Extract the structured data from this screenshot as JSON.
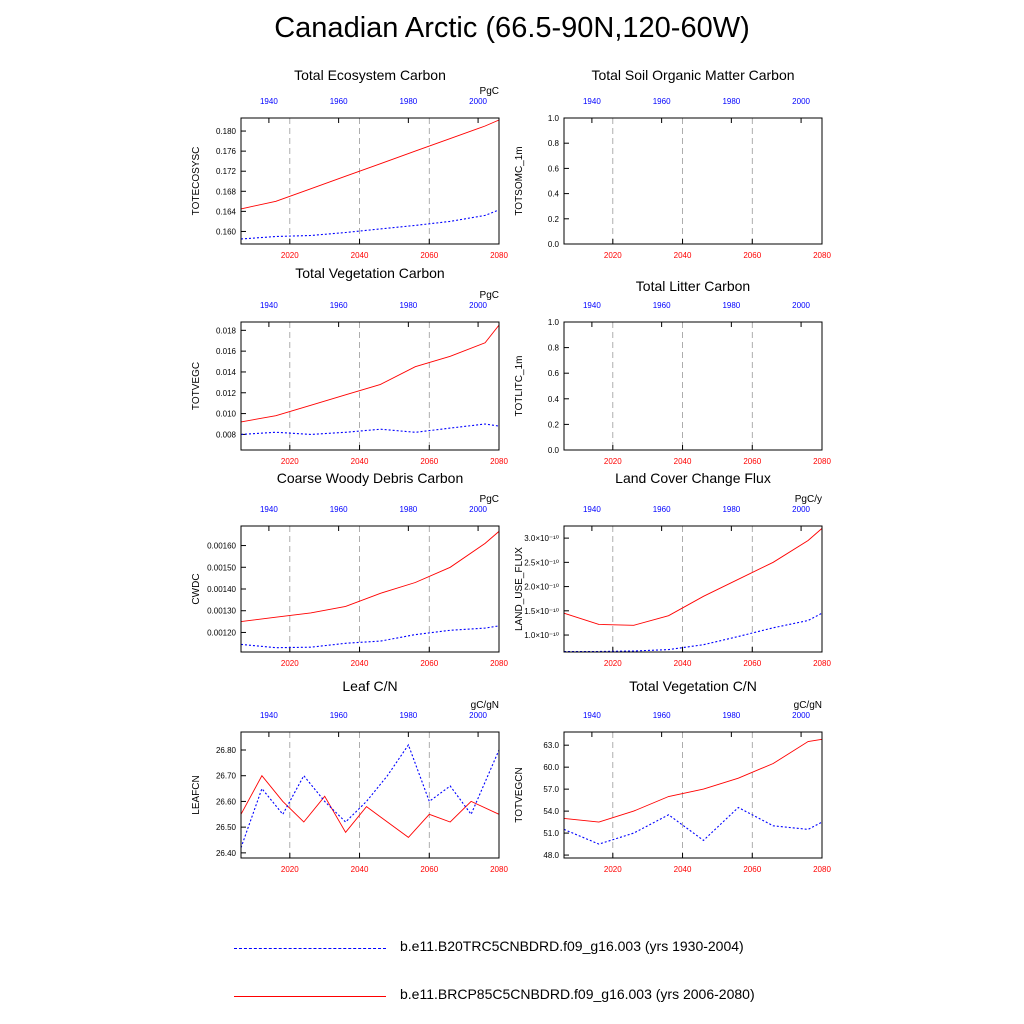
{
  "page_title": "Canadian Arctic (66.5-90N,120-60W)",
  "colors": {
    "historical": "#0000ff",
    "future": "#ff0000",
    "gridline": "#999999"
  },
  "legend": {
    "entries": [
      {
        "label": "b.e11.B20TRC5CNBDRD.f09_g16.003 (yrs 1930-2004)",
        "color": "#0000ff",
        "style": "dashed"
      },
      {
        "label": "b.e11.BRCP85C5CNBDRD.f09_g16.003 (yrs 2006-2080)",
        "color": "#ff0000",
        "style": "solid"
      }
    ]
  },
  "chart_data": [
    {
      "type": "line",
      "title": "Total Ecosystem Carbon",
      "ylabel": "TOTECOSYSC",
      "units": "PgC",
      "x_bottom_ticks": [
        "2020",
        "2040",
        "2060",
        "2080"
      ],
      "x_top_ticks": [
        "1940",
        "1960",
        "1980",
        "2000"
      ],
      "xlim": [
        2006,
        2080
      ],
      "ylim": [
        0.1575,
        0.1826
      ],
      "y_ticks": [
        "0.160",
        "0.164",
        "0.168",
        "0.172",
        "0.176",
        "0.180"
      ],
      "series": [
        {
          "x": [
            2006,
            2016,
            2026,
            2036,
            2046,
            2056,
            2066,
            2076,
            2080
          ],
          "values": [
            0.1645,
            0.166,
            0.1685,
            0.171,
            0.1735,
            0.176,
            0.1785,
            0.181,
            0.1822
          ]
        },
        {
          "x": [
            2006,
            2016,
            2026,
            2036,
            2046,
            2056,
            2066,
            2076,
            2080
          ],
          "values": [
            0.1585,
            0.159,
            0.1592,
            0.1598,
            0.1605,
            0.1612,
            0.162,
            0.1632,
            0.1643
          ]
        }
      ]
    },
    {
      "type": "line",
      "title": "Total Soil Organic Matter Carbon",
      "ylabel": "TOTSOMC_1m",
      "units": "",
      "x_bottom_ticks": [
        "2020",
        "2040",
        "2060",
        "2080"
      ],
      "x_top_ticks": [
        "1940",
        "1960",
        "1980",
        "2000"
      ],
      "xlim": [
        2006,
        2080
      ],
      "ylim": [
        0,
        1
      ],
      "y_ticks": [
        "0.0",
        "0.2",
        "0.4",
        "0.6",
        "0.8",
        "1.0"
      ],
      "series": []
    },
    {
      "type": "line",
      "title": "Total Vegetation Carbon",
      "ylabel": "TOTVEGC",
      "units": "PgC",
      "x_bottom_ticks": [
        "2020",
        "2040",
        "2060",
        "2080"
      ],
      "x_top_ticks": [
        "1940",
        "1960",
        "1980",
        "2000"
      ],
      "xlim": [
        2006,
        2080
      ],
      "ylim": [
        0.0065,
        0.0188
      ],
      "y_ticks": [
        "0.008",
        "0.010",
        "0.012",
        "0.014",
        "0.016",
        "0.018"
      ],
      "series": [
        {
          "x": [
            2006,
            2016,
            2026,
            2036,
            2046,
            2056,
            2066,
            2076,
            2080
          ],
          "values": [
            0.0092,
            0.0098,
            0.0108,
            0.0118,
            0.0128,
            0.0145,
            0.0155,
            0.0168,
            0.0185
          ]
        },
        {
          "x": [
            2006,
            2016,
            2026,
            2036,
            2046,
            2056,
            2066,
            2076,
            2080
          ],
          "values": [
            0.008,
            0.0082,
            0.008,
            0.0082,
            0.0085,
            0.0082,
            0.0086,
            0.009,
            0.0088
          ]
        }
      ]
    },
    {
      "type": "line",
      "title": "Total Litter Carbon",
      "ylabel": "TOTLITC_1m",
      "units": "",
      "x_bottom_ticks": [
        "2020",
        "2040",
        "2060",
        "2080"
      ],
      "x_top_ticks": [
        "1940",
        "1960",
        "1980",
        "2000"
      ],
      "xlim": [
        2006,
        2080
      ],
      "ylim": [
        0,
        1
      ],
      "y_ticks": [
        "0.0",
        "0.2",
        "0.4",
        "0.6",
        "0.8",
        "1.0"
      ],
      "series": []
    },
    {
      "type": "line",
      "title": "Coarse Woody Debris Carbon",
      "ylabel": "CWDC",
      "units": "PgC",
      "x_bottom_ticks": [
        "2020",
        "2040",
        "2060",
        "2080"
      ],
      "x_top_ticks": [
        "1940",
        "1960",
        "1980",
        "2000"
      ],
      "xlim": [
        2006,
        2080
      ],
      "ylim": [
        0.00111,
        0.00169
      ],
      "y_ticks": [
        "0.00120",
        "0.00130",
        "0.00140",
        "0.00150",
        "0.00160"
      ],
      "series": [
        {
          "x": [
            2006,
            2016,
            2026,
            2036,
            2046,
            2056,
            2066,
            2076,
            2080
          ],
          "values": [
            0.00125,
            0.00127,
            0.00129,
            0.00132,
            0.00138,
            0.00143,
            0.0015,
            0.00161,
            0.001665
          ]
        },
        {
          "x": [
            2006,
            2016,
            2026,
            2036,
            2046,
            2056,
            2066,
            2076,
            2080
          ],
          "values": [
            0.001145,
            0.00113,
            0.001132,
            0.00115,
            0.00116,
            0.00119,
            0.00121,
            0.00122,
            0.00123
          ]
        }
      ]
    },
    {
      "type": "line",
      "title": "Land Cover Change Flux",
      "ylabel": "LAND_USE_FLUX",
      "units": "PgC/y",
      "x_bottom_ticks": [
        "2020",
        "2040",
        "2060",
        "2080"
      ],
      "x_top_ticks": [
        "1940",
        "1960",
        "1980",
        "2000"
      ],
      "xlim": [
        2006,
        2080
      ],
      "ylim": [
        6.5e-11,
        3.25e-10
      ],
      "y_ticks": [
        "1.0×10⁻¹⁰",
        "1.5×10⁻¹⁰",
        "2.0×10⁻¹⁰",
        "2.5×10⁻¹⁰",
        "3.0×10⁻¹⁰"
      ],
      "series": [
        {
          "x": [
            2006,
            2016,
            2026,
            2036,
            2046,
            2056,
            2066,
            2076,
            2080
          ],
          "values": [
            1.45e-10,
            1.22e-10,
            1.2e-10,
            1.4e-10,
            1.8e-10,
            2.15e-10,
            2.5e-10,
            2.95e-10,
            3.2e-10
          ]
        },
        {
          "x": [
            2006,
            2016,
            2026,
            2036,
            2046,
            2056,
            2066,
            2076,
            2080
          ],
          "values": [
            6.6e-11,
            6.6e-11,
            6.7e-11,
            7e-11,
            8e-11,
            9.7e-11,
            1.15e-10,
            1.3e-10,
            1.45e-10
          ]
        }
      ]
    },
    {
      "type": "line",
      "title": "Leaf C/N",
      "ylabel": "LEAFCN",
      "units": "gC/gN",
      "x_bottom_ticks": [
        "2020",
        "2040",
        "2060",
        "2080"
      ],
      "x_top_ticks": [
        "1940",
        "1960",
        "1980",
        "2000"
      ],
      "xlim": [
        2006,
        2080
      ],
      "ylim": [
        26.38,
        26.87
      ],
      "y_ticks": [
        "26.40",
        "26.50",
        "26.60",
        "26.70",
        "26.80"
      ],
      "series": [
        {
          "x": [
            2006,
            2012,
            2018,
            2024,
            2030,
            2036,
            2042,
            2048,
            2054,
            2060,
            2066,
            2072,
            2080
          ],
          "values": [
            26.55,
            26.7,
            26.6,
            26.52,
            26.62,
            26.48,
            26.58,
            26.52,
            26.46,
            26.55,
            26.52,
            26.6,
            26.55
          ]
        },
        {
          "x": [
            2006,
            2012,
            2018,
            2024,
            2030,
            2036,
            2042,
            2048,
            2054,
            2060,
            2066,
            2072,
            2080
          ],
          "values": [
            26.42,
            26.65,
            26.55,
            26.7,
            26.6,
            26.52,
            26.6,
            26.7,
            26.82,
            26.6,
            26.66,
            26.55,
            26.8
          ]
        }
      ]
    },
    {
      "type": "line",
      "title": "Total Vegetation C/N",
      "ylabel": "TOTVEGCN",
      "units": "gC/gN",
      "x_bottom_ticks": [
        "2020",
        "2040",
        "2060",
        "2080"
      ],
      "x_top_ticks": [
        "1940",
        "1960",
        "1980",
        "2000"
      ],
      "xlim": [
        2006,
        2080
      ],
      "ylim": [
        47.6,
        64.8
      ],
      "y_ticks": [
        "48.0",
        "51.0",
        "54.0",
        "57.0",
        "60.0",
        "63.0"
      ],
      "series": [
        {
          "x": [
            2006,
            2016,
            2026,
            2036,
            2046,
            2056,
            2066,
            2076,
            2080
          ],
          "values": [
            53.0,
            52.5,
            54.0,
            56.0,
            57.0,
            58.5,
            60.5,
            63.5,
            63.8
          ]
        },
        {
          "x": [
            2006,
            2016,
            2026,
            2036,
            2046,
            2056,
            2066,
            2076,
            2080
          ],
          "values": [
            51.5,
            49.5,
            51.0,
            53.5,
            50.0,
            54.5,
            52.0,
            51.5,
            52.5
          ]
        }
      ]
    }
  ]
}
